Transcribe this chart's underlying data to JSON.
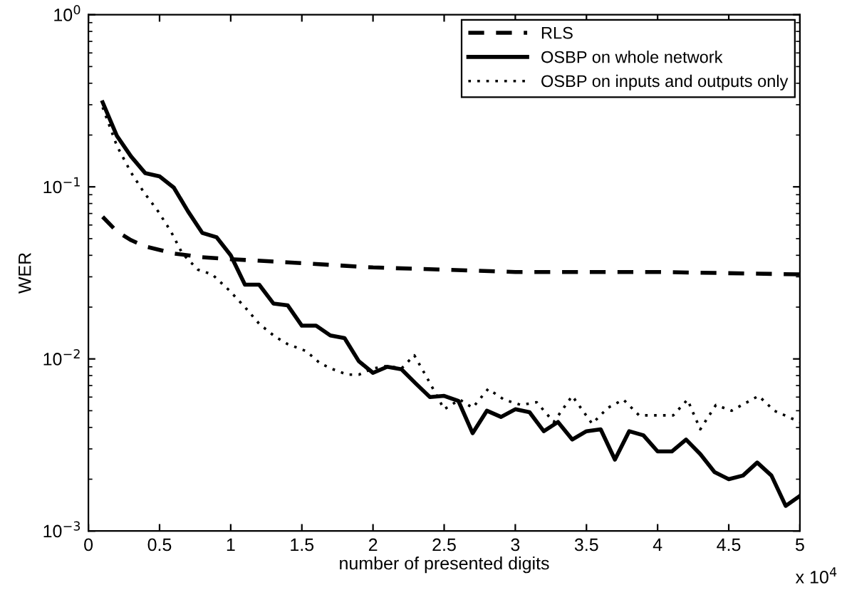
{
  "chart_data": {
    "type": "line",
    "xlabel": "number of presented digits",
    "ylabel": "WER",
    "log": "y",
    "legend": "top right",
    "grid": false,
    "marker": "none",
    "xlim": [
      0,
      5
    ],
    "ylim": [
      0.001,
      1
    ],
    "xticks": [
      0,
      0.5,
      1,
      1.5,
      2,
      2.5,
      3,
      3.5,
      4,
      4.5,
      5
    ],
    "yticks": [
      {
        "value": 0.001,
        "label": "10$^{−3}$"
      },
      {
        "value": 0.01,
        "label": "10$^{−2}$"
      },
      {
        "value": 0.1,
        "label": "10$^{−1}$"
      },
      {
        "value": 1,
        "label": "10$^{0}$"
      }
    ],
    "annotations": [
      "x 10$^{4}$"
    ],
    "series": [
      {
        "name": "RLS",
        "color": "#000000",
        "line_style": "dashed",
        "x": [
          0.1,
          0.2,
          0.3,
          0.4,
          0.5,
          0.6,
          0.8,
          1,
          1.5,
          2,
          2.5,
          3,
          4,
          5
        ],
        "values": [
          0.067,
          0.055,
          0.049,
          0.045,
          0.043,
          0.041,
          0.039,
          0.038,
          0.036,
          0.034,
          0.033,
          0.032,
          0.032,
          0.031
        ]
      },
      {
        "name": "OSBP on whole network",
        "color": "#000000",
        "line_style": "solid",
        "x": [
          0.1,
          0.2,
          0.3,
          0.4,
          0.5,
          0.6,
          0.7,
          0.8,
          0.9,
          1,
          1.1,
          1.2,
          1.3,
          1.4,
          1.5,
          1.6,
          1.7,
          1.8,
          1.9,
          2,
          2.1,
          2.2,
          2.3,
          2.4,
          2.5,
          2.6,
          2.7,
          2.8,
          2.9,
          3,
          3.1,
          3.2,
          3.3,
          3.4,
          3.5,
          3.6,
          3.7,
          3.8,
          3.9,
          4,
          4.1,
          4.2,
          4.3,
          4.4,
          4.5,
          4.6,
          4.7,
          4.8,
          4.9,
          5
        ],
        "values": [
          0.31,
          0.198,
          0.15,
          0.12,
          0.115,
          0.099,
          0.072,
          0.054,
          0.051,
          0.04,
          0.027,
          0.027,
          0.021,
          0.0205,
          0.0156,
          0.0156,
          0.0137,
          0.0132,
          0.0097,
          0.0083,
          0.009,
          0.0087,
          0.0072,
          0.006,
          0.0061,
          0.0057,
          0.0037,
          0.005,
          0.0046,
          0.0051,
          0.0049,
          0.0038,
          0.0043,
          0.0034,
          0.0038,
          0.0039,
          0.0026,
          0.0038,
          0.0036,
          0.0029,
          0.0029,
          0.0034,
          0.0028,
          0.0022,
          0.002,
          0.0021,
          0.0025,
          0.0021,
          0.0014,
          0.0016
        ]
      },
      {
        "name": "OSBP on inputs and outputs only",
        "color": "#000000",
        "line_style": "dotted",
        "x": [
          0.1,
          0.2,
          0.3,
          0.39,
          0.49,
          0.58,
          0.66,
          0.77,
          0.87,
          0.99,
          1.1,
          1.2,
          1.31,
          1.4,
          1.53,
          1.63,
          1.72,
          1.82,
          1.9,
          2,
          2.1,
          2.2,
          2.29,
          2.39,
          2.5,
          2.61,
          2.7,
          2.81,
          2.92,
          3.04,
          3.15,
          3.27,
          3.4,
          3.54,
          3.65,
          3.76,
          3.87,
          4,
          4.11,
          4.21,
          4.3,
          4.41,
          4.52,
          4.71,
          4.82,
          5
        ],
        "values": [
          0.29,
          0.173,
          0.121,
          0.093,
          0.072,
          0.055,
          0.041,
          0.033,
          0.031,
          0.025,
          0.02,
          0.016,
          0.0135,
          0.0122,
          0.0111,
          0.0094,
          0.0087,
          0.0081,
          0.0081,
          0.0088,
          0.0091,
          0.0088,
          0.0105,
          0.0075,
          0.0051,
          0.0058,
          0.0052,
          0.0067,
          0.0058,
          0.0054,
          0.0056,
          0.0043,
          0.0061,
          0.0042,
          0.0052,
          0.0058,
          0.0047,
          0.0047,
          0.0047,
          0.0058,
          0.0039,
          0.0054,
          0.005,
          0.0061,
          0.005,
          0.0043
        ]
      }
    ]
  }
}
